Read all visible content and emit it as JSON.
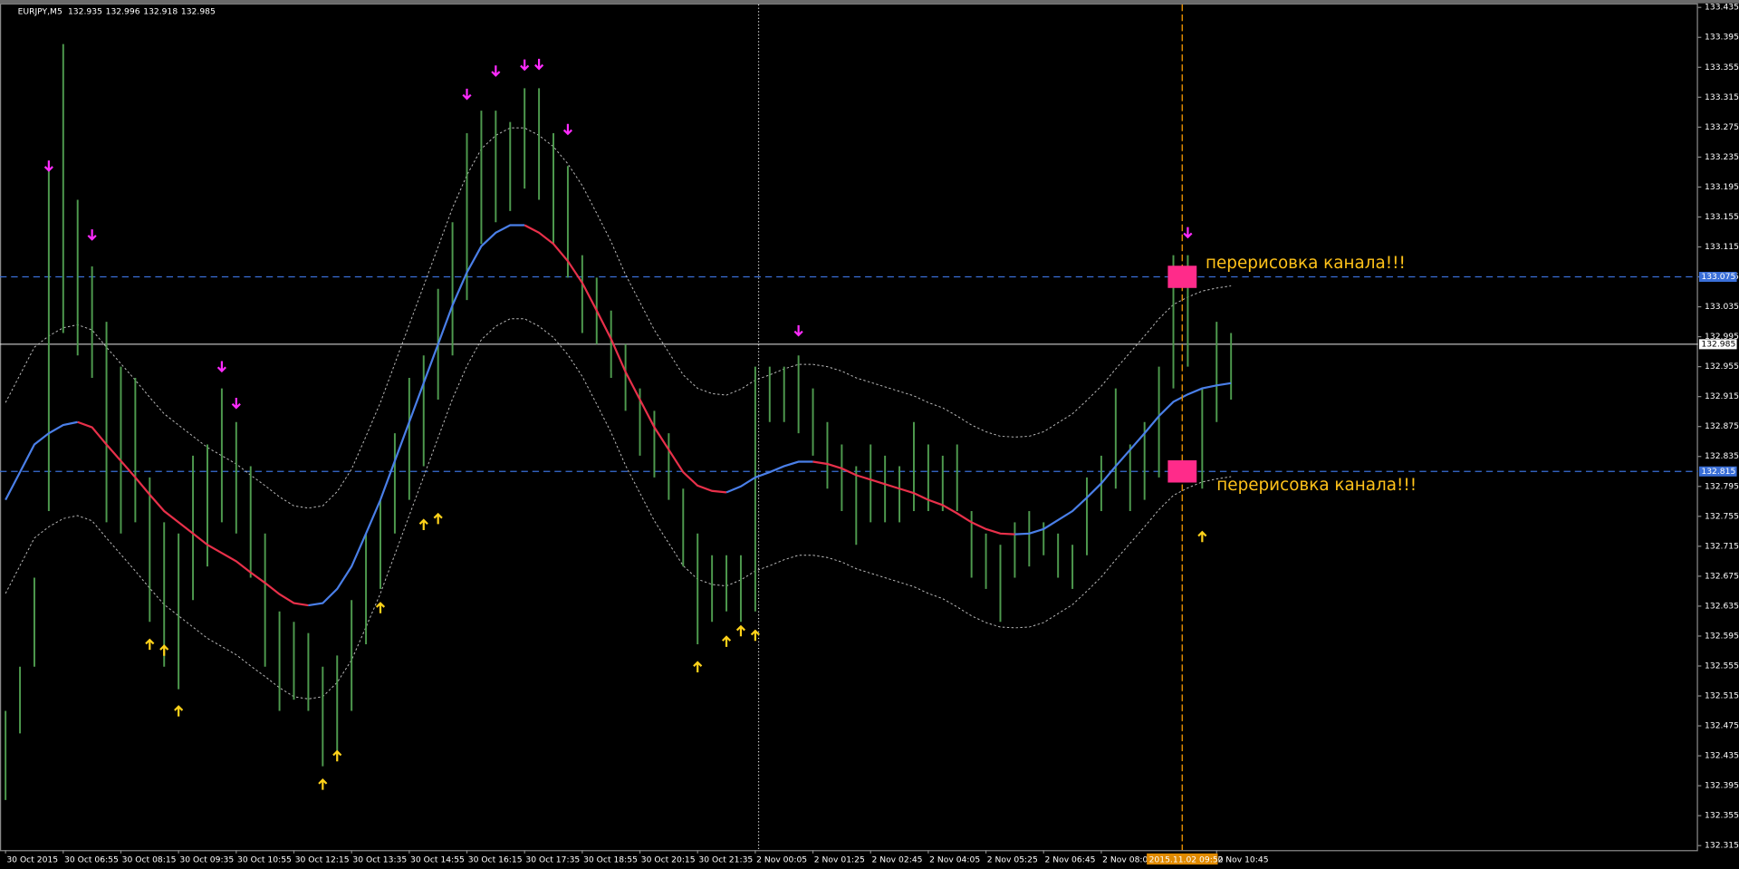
{
  "chart_data": {
    "type": "ohlc",
    "header": {
      "symbol": "EURJPY,M5",
      "values": [
        132.935,
        132.996,
        132.918,
        132.985
      ]
    },
    "categories": [
      "30 Oct 2015",
      null,
      null,
      null,
      "30 Oct 06:55",
      null,
      null,
      null,
      "30 Oct 08:15",
      null,
      null,
      null,
      "30 Oct 09:35",
      null,
      null,
      null,
      "30 Oct 10:55",
      null,
      null,
      null,
      "30 Oct 12:15",
      null,
      null,
      null,
      "30 Oct 13:35",
      null,
      null,
      null,
      "30 Oct 14:55",
      null,
      null,
      null,
      "30 Oct 16:15",
      null,
      null,
      null,
      "30 Oct 17:35",
      null,
      null,
      null,
      "30 Oct 18:55",
      null,
      null,
      null,
      "30 Oct 20:15",
      null,
      null,
      null,
      "30 Oct 21:35",
      null,
      null,
      null,
      "2 Nov 00:05",
      null,
      null,
      null,
      "2 Nov 01:25",
      null,
      null,
      null,
      "2 Nov 02:45",
      null,
      null,
      null,
      "2 Nov 04:05",
      null,
      null,
      null,
      "2 Nov 05:25",
      null,
      null,
      null,
      "2 Nov 06:45",
      null,
      null,
      null,
      "2 Nov 08:05",
      null,
      null,
      null,
      null,
      null,
      null,
      null,
      "2 Nov 10:45",
      null
    ],
    "high": [
      132.495,
      132.554,
      132.673,
      133.223,
      133.386,
      133.178,
      133.089,
      133.015,
      132.955,
      132.94,
      132.807,
      132.747,
      132.732,
      132.836,
      132.851,
      132.926,
      132.881,
      132.822,
      132.732,
      132.628,
      132.614,
      132.599,
      132.554,
      132.569,
      132.643,
      132.732,
      132.777,
      132.866,
      132.94,
      132.97,
      133.059,
      133.148,
      133.267,
      133.297,
      133.297,
      133.282,
      133.327,
      133.327,
      133.267,
      133.223,
      133.104,
      133.074,
      133.03,
      132.985,
      132.926,
      132.896,
      132.866,
      132.792,
      132.732,
      132.703,
      132.703,
      132.703,
      132.955,
      132.955,
      132.955,
      132.97,
      132.926,
      132.881,
      132.851,
      132.822,
      132.851,
      132.836,
      132.822,
      132.881,
      132.851,
      132.836,
      132.851,
      132.762,
      132.732,
      132.717,
      132.747,
      132.762,
      132.747,
      132.732,
      132.717,
      132.807,
      132.836,
      132.926,
      132.851,
      132.881,
      132.955,
      133.104,
      133.104,
      132.926,
      133.015,
      133.0
    ],
    "low": [
      132.376,
      132.465,
      132.554,
      132.762,
      133.0,
      132.97,
      132.94,
      132.747,
      132.732,
      132.747,
      132.614,
      132.554,
      132.524,
      132.643,
      132.688,
      132.747,
      132.732,
      132.673,
      132.554,
      132.495,
      132.51,
      132.495,
      132.421,
      132.435,
      132.495,
      132.584,
      132.658,
      132.732,
      132.777,
      132.822,
      132.911,
      132.97,
      133.044,
      133.119,
      133.148,
      133.163,
      133.193,
      133.178,
      133.119,
      133.074,
      133.0,
      132.985,
      132.94,
      132.896,
      132.836,
      132.807,
      132.777,
      132.688,
      132.584,
      132.614,
      132.628,
      132.614,
      132.628,
      132.881,
      132.881,
      132.866,
      132.836,
      132.792,
      132.762,
      132.717,
      132.747,
      132.747,
      132.747,
      132.762,
      132.762,
      132.762,
      132.762,
      132.673,
      132.658,
      132.614,
      132.673,
      132.688,
      132.703,
      132.673,
      132.658,
      132.703,
      132.762,
      132.792,
      132.762,
      132.777,
      132.807,
      132.926,
      132.955,
      132.792,
      132.881,
      132.911
    ],
    "bar_color": "#4e9a4e",
    "ma": {
      "rising_color": "#4a7fe8",
      "falling_color": "#e8304a",
      "values": [
        132.777,
        132.814,
        132.851,
        132.866,
        132.877,
        132.881,
        132.874,
        132.851,
        132.829,
        132.807,
        132.784,
        132.762,
        132.747,
        132.732,
        132.717,
        132.706,
        132.695,
        132.68,
        132.666,
        132.651,
        132.639,
        132.636,
        132.639,
        132.658,
        132.688,
        132.732,
        132.777,
        132.829,
        132.881,
        132.933,
        132.985,
        133.037,
        133.081,
        133.116,
        133.134,
        133.144,
        133.144,
        133.134,
        133.119,
        133.096,
        133.067,
        133.03,
        132.992,
        132.948,
        132.911,
        132.874,
        132.844,
        132.814,
        132.796,
        132.789,
        132.787,
        132.795,
        132.807,
        132.814,
        132.822,
        132.828,
        132.828,
        132.825,
        132.819,
        132.81,
        132.804,
        132.798,
        132.792,
        132.786,
        132.777,
        132.77,
        132.759,
        132.747,
        132.738,
        132.732,
        132.731,
        132.732,
        132.738,
        132.75,
        132.762,
        132.78,
        132.799,
        132.822,
        132.844,
        132.866,
        132.889,
        132.908,
        132.918,
        132.926,
        132.93,
        132.933
      ]
    },
    "upper": {
      "color": "#bbbbbb",
      "values": [
        132.907,
        132.944,
        132.981,
        132.996,
        133.007,
        133.011,
        133.004,
        132.981,
        132.959,
        132.937,
        132.914,
        132.892,
        132.877,
        132.862,
        132.847,
        132.836,
        132.825,
        132.81,
        132.796,
        132.781,
        132.769,
        132.766,
        132.769,
        132.788,
        132.818,
        132.862,
        132.907,
        132.959,
        133.011,
        133.063,
        133.115,
        133.167,
        133.211,
        133.246,
        133.264,
        133.274,
        133.274,
        133.264,
        133.249,
        133.226,
        133.197,
        133.16,
        133.122,
        133.078,
        133.041,
        133.004,
        132.974,
        132.944,
        132.926,
        132.919,
        132.917,
        132.925,
        132.937,
        132.944,
        132.952,
        132.958,
        132.958,
        132.955,
        132.949,
        132.94,
        132.934,
        132.928,
        132.922,
        132.916,
        132.907,
        132.9,
        132.889,
        132.877,
        132.868,
        132.862,
        132.861,
        132.862,
        132.868,
        132.88,
        132.892,
        132.91,
        132.929,
        132.952,
        132.974,
        132.996,
        133.019,
        133.038,
        133.048,
        133.056,
        133.06,
        133.063
      ]
    },
    "lower": {
      "color": "#bbbbbb",
      "values": [
        132.652,
        132.689,
        132.726,
        132.741,
        132.752,
        132.756,
        132.749,
        132.726,
        132.704,
        132.682,
        132.659,
        132.637,
        132.622,
        132.607,
        132.592,
        132.581,
        132.57,
        132.555,
        132.541,
        132.526,
        132.514,
        132.511,
        132.514,
        132.533,
        132.563,
        132.607,
        132.652,
        132.704,
        132.756,
        132.808,
        132.86,
        132.912,
        132.956,
        132.991,
        133.009,
        133.019,
        133.019,
        133.009,
        132.994,
        132.971,
        132.942,
        132.905,
        132.867,
        132.823,
        132.786,
        132.749,
        132.719,
        132.689,
        132.671,
        132.664,
        132.662,
        132.67,
        132.682,
        132.689,
        132.697,
        132.703,
        132.703,
        132.7,
        132.694,
        132.685,
        132.679,
        132.673,
        132.667,
        132.661,
        132.652,
        132.645,
        132.634,
        132.622,
        132.613,
        132.607,
        132.606,
        132.607,
        132.613,
        132.625,
        132.637,
        132.655,
        132.674,
        132.697,
        132.719,
        132.741,
        132.764,
        132.783,
        132.793,
        132.801,
        132.805,
        132.808
      ]
    },
    "down_arrows": {
      "color": "#ff2bff",
      "x": [
        3,
        6,
        15,
        16,
        32,
        34,
        36,
        37,
        39,
        55,
        82
      ],
      "values": [
        133.223,
        133.131,
        132.955,
        132.906,
        133.319,
        133.35,
        133.358,
        133.359,
        133.272,
        133.003,
        133.134
      ]
    },
    "up_arrows": {
      "color": "#ffd21a",
      "x": [
        10,
        11,
        12,
        22,
        23,
        26,
        29,
        30,
        48,
        50,
        51,
        52,
        83
      ],
      "values": [
        132.584,
        132.576,
        132.495,
        132.397,
        132.435,
        132.633,
        132.744,
        132.752,
        132.554,
        132.588,
        132.602,
        132.596,
        132.728
      ]
    },
    "hlines": [
      {
        "value": 133.075,
        "color": "#3a6fd8",
        "annotation": "перерисовка канала!!!"
      },
      {
        "value": 132.815,
        "color": "#3a6fd8",
        "annotation": "перерисовка канала!!!"
      }
    ],
    "annotation_color": "#ffc21a",
    "marker_color": "#ff2b8a",
    "current_price": 132.985,
    "cursor_label": "2015.11.02 09:50",
    "ylim": [
      132.309,
      133.439
    ],
    "yticks": [
      132.315,
      132.355,
      132.395,
      132.435,
      132.475,
      132.515,
      132.555,
      132.595,
      132.635,
      132.675,
      132.715,
      132.755,
      132.795,
      132.835,
      132.875,
      132.915,
      132.955,
      132.995,
      133.035,
      133.075,
      133.115,
      133.155,
      133.195,
      133.235,
      133.275,
      133.315,
      133.355,
      133.395,
      133.435
    ]
  }
}
